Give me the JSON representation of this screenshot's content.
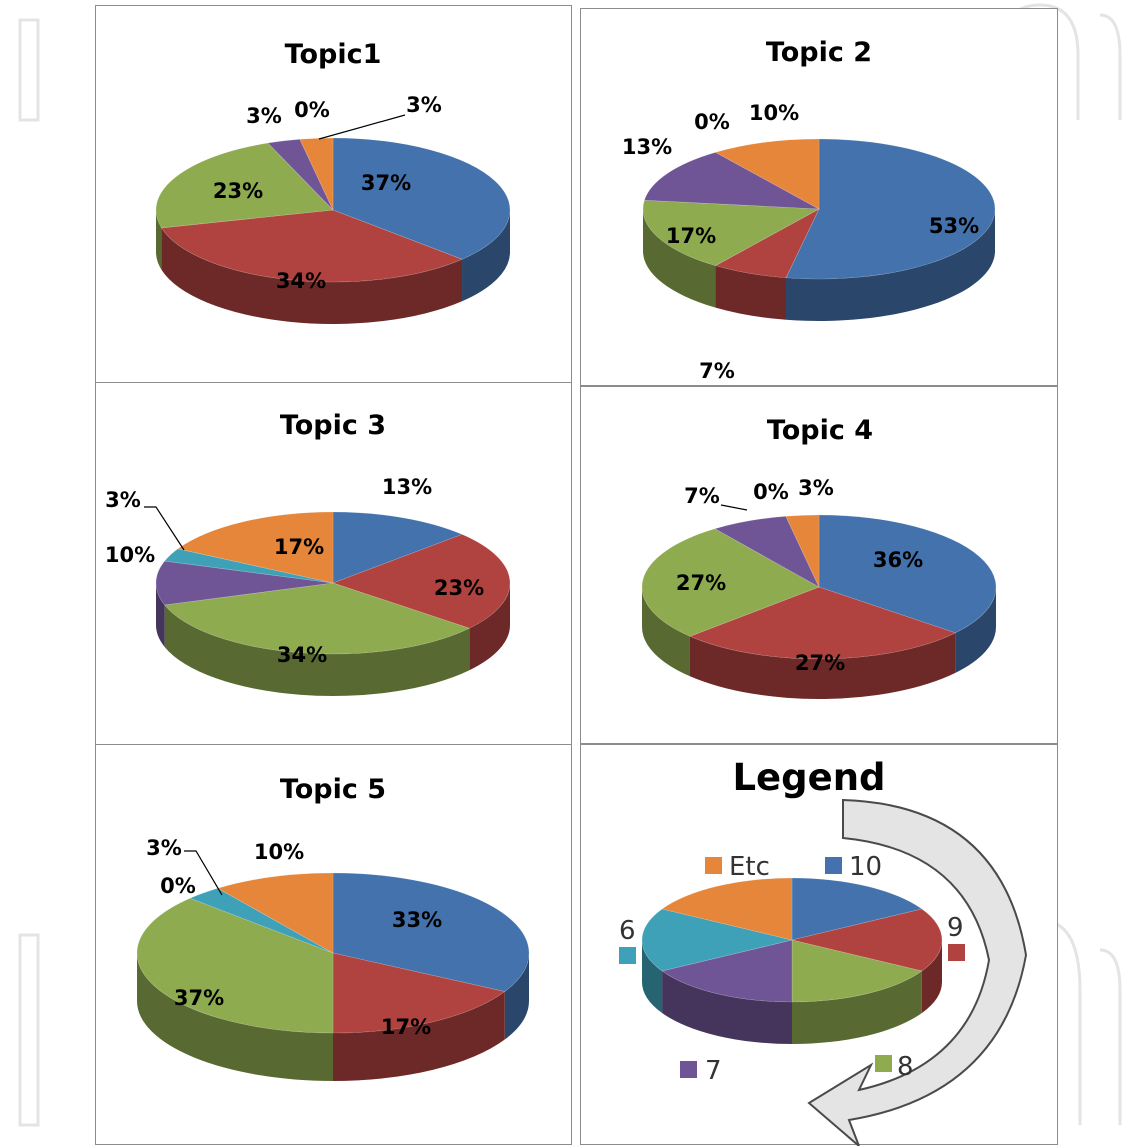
{
  "colors": {
    "10": "#4372ad",
    "9": "#b0423f",
    "8": "#8eab50",
    "7": "#6f5595",
    "6": "#3ea1b8",
    "Etc": "#e5863a"
  },
  "chart_data": [
    {
      "type": "pie",
      "title": "Topic1",
      "categories": [
        "10",
        "9",
        "8",
        "7",
        "6",
        "Etc"
      ],
      "values": [
        37,
        34,
        23,
        3,
        0,
        3
      ],
      "labels": [
        "37%",
        "34%",
        "23%",
        "3%",
        "0%",
        "3%"
      ]
    },
    {
      "type": "pie",
      "title": "Topic 2",
      "categories": [
        "10",
        "9",
        "8",
        "7",
        "6",
        "Etc"
      ],
      "values": [
        53,
        7,
        17,
        13,
        0,
        10
      ],
      "labels": [
        "53%",
        "7%",
        "17%",
        "13%",
        "0%",
        "10%"
      ]
    },
    {
      "type": "pie",
      "title": "Topic 3",
      "categories": [
        "10",
        "9",
        "8",
        "7",
        "6",
        "Etc"
      ],
      "values": [
        13,
        23,
        34,
        10,
        3,
        17
      ],
      "labels": [
        "13%",
        "23%",
        "34%",
        "10%",
        "3%",
        "17%"
      ]
    },
    {
      "type": "pie",
      "title": "Topic 4",
      "categories": [
        "10",
        "9",
        "8",
        "7",
        "6",
        "Etc"
      ],
      "values": [
        36,
        27,
        27,
        7,
        0,
        3
      ],
      "labels": [
        "36%",
        "27%",
        "27%",
        "7%",
        "0%",
        "3%"
      ]
    },
    {
      "type": "pie",
      "title": "Topic 5",
      "categories": [
        "10",
        "9",
        "8",
        "7",
        "6",
        "Etc"
      ],
      "values": [
        33,
        17,
        37,
        0,
        3,
        10
      ],
      "labels": [
        "33%",
        "17%",
        "37%",
        "0%",
        "3%",
        "10%"
      ]
    }
  ],
  "legend": {
    "title": "Legend",
    "items": [
      {
        "key": "10",
        "label": "10"
      },
      {
        "key": "9",
        "label": "9"
      },
      {
        "key": "8",
        "label": "8"
      },
      {
        "key": "7",
        "label": "7"
      },
      {
        "key": "6",
        "label": "6"
      },
      {
        "key": "Etc",
        "label": "Etc"
      }
    ]
  }
}
